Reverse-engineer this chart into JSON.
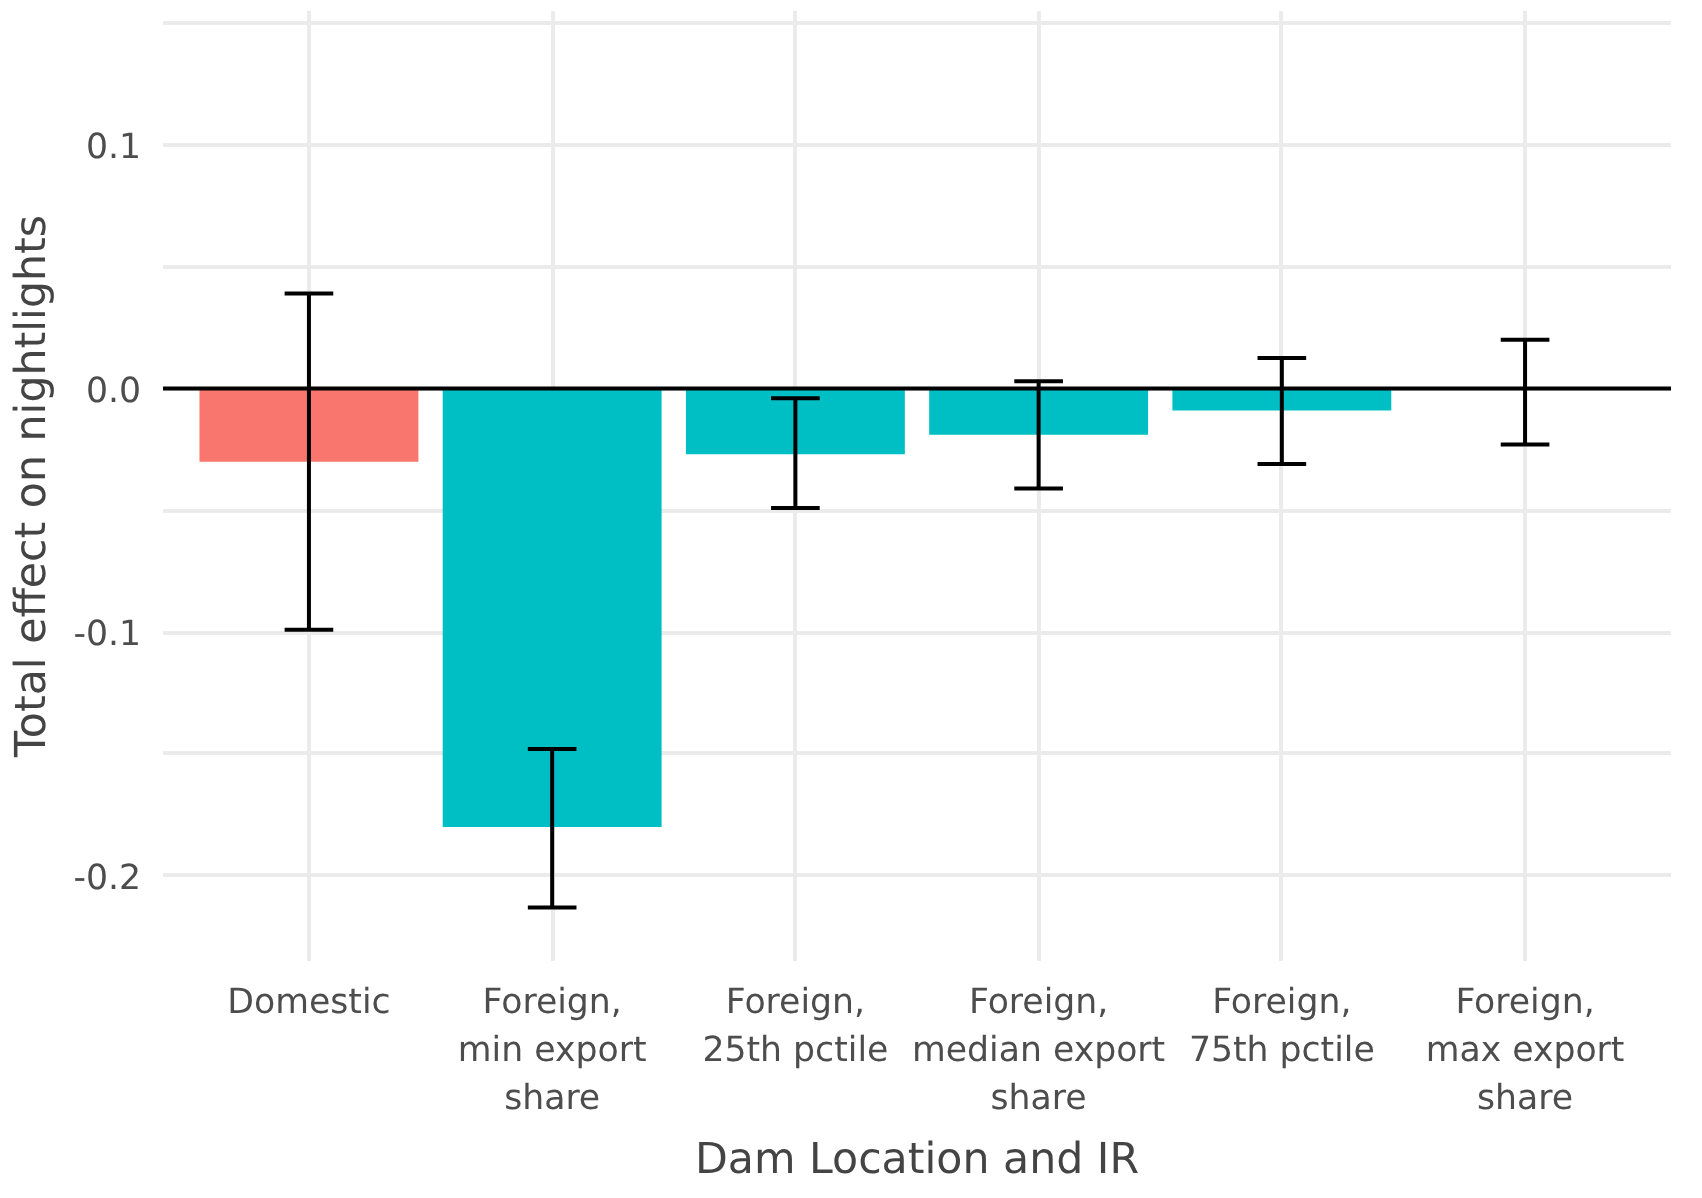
{
  "chart_data": {
    "type": "bar",
    "xlabel": "Dam Location and IR",
    "ylabel": "Total effect on nightlights",
    "categories": [
      "Domestic",
      "Foreign,\nmin export\nshare",
      "Foreign,\n25th pctile",
      "Foreign,\nmedian export\nshare",
      "Foreign,\n75th pctile",
      "Foreign,\nmax export\nshare"
    ],
    "values": [
      -0.03,
      -0.18,
      -0.027,
      -0.019,
      -0.009,
      0.0
    ],
    "colors": [
      "#f8766d",
      "#00bfc4",
      "#00bfc4",
      "#00bfc4",
      "#00bfc4",
      "#00bfc4"
    ],
    "errors": [
      [
        -0.099,
        0.039
      ],
      [
        -0.213,
        -0.148
      ],
      [
        -0.049,
        -0.004
      ],
      [
        -0.041,
        0.003
      ],
      [
        -0.031,
        0.0125
      ],
      [
        -0.023,
        0.02
      ]
    ],
    "ylim": [
      -0.235,
      0.155
    ],
    "yticks": [
      {
        "value": -0.2,
        "label": "-0.2"
      },
      {
        "value": -0.15,
        "label": null
      },
      {
        "value": -0.1,
        "label": "-0.1"
      },
      {
        "value": -0.05,
        "label": null
      },
      {
        "value": 0,
        "label": "0.0"
      },
      {
        "value": 0.05,
        "label": null
      },
      {
        "value": 0.1,
        "label": "0.1"
      },
      {
        "value": 0.15,
        "label": null
      }
    ],
    "ref_lines": [
      {
        "axis": "y",
        "value": 0,
        "color": "#000000"
      }
    ],
    "grid": true
  }
}
